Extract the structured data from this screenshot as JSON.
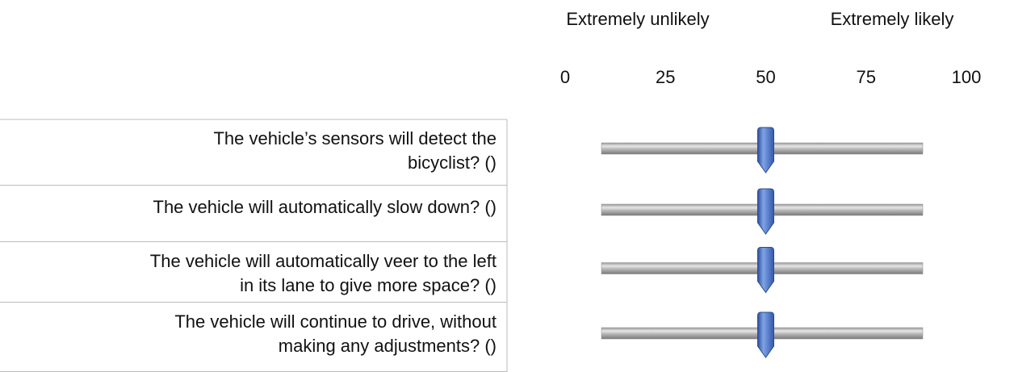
{
  "header": {
    "left_anchor": "Extremely unlikely",
    "right_anchor": "Extremely likely"
  },
  "scale": {
    "ticks": [
      0,
      25,
      50,
      75,
      100
    ]
  },
  "rows": [
    {
      "question": [
        "The vehicle’s sensors will detect the",
        "bicyclist? ()"
      ],
      "value": 50
    },
    {
      "question": [
        "The vehicle will automatically slow down? ()"
      ],
      "value": 50
    },
    {
      "question": [
        "The vehicle will automatically veer to the left",
        "in its lane to give more space? ()"
      ],
      "value": 50
    },
    {
      "question": [
        "The vehicle will continue to drive, without",
        "making any adjustments? ()"
      ],
      "value": 50
    }
  ]
}
